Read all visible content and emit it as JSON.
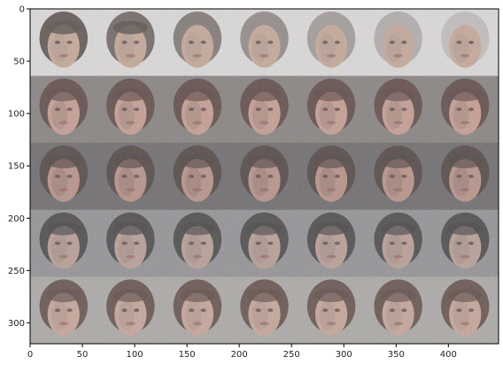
{
  "image": {
    "description_free": true,
    "grid": {
      "rows": 5,
      "cols": 7
    },
    "extent": {
      "xmax": 448,
      "ymax": 320
    }
  },
  "axes": {
    "x_ticks": [
      "0",
      "50",
      "100",
      "150",
      "200",
      "250",
      "300",
      "350",
      "400"
    ],
    "y_ticks": [
      "0",
      "50",
      "100",
      "150",
      "200",
      "250",
      "300"
    ],
    "frame_color": "#000000"
  },
  "rows": [
    {
      "bg": "#e4e2e2",
      "face": "#c8a592",
      "hair": "#473a36",
      "shade": "#8e8581",
      "mood": "bald-to-hair"
    },
    {
      "bg": "#7d7775",
      "face": "#c9988a",
      "hair": "#4a2f2c",
      "shade": "#6d5a55",
      "mood": "woman-dark-hair"
    },
    {
      "bg": "#5f5b5e",
      "face": "#b88a7e",
      "hair": "#3a2b29",
      "shade": "#5a4a46",
      "mood": "woman-dark-hair-2"
    },
    {
      "bg": "#8c8a8e",
      "face": "#b9998e",
      "hair": "#2e2a2c",
      "shade": "#7a6f6c",
      "mood": "man-short-hair"
    },
    {
      "bg": "#a9a6a3",
      "face": "#c9a292",
      "hair": "#4c332d",
      "shade": "#8c7a72",
      "mood": "woman-long-hair"
    }
  ]
}
